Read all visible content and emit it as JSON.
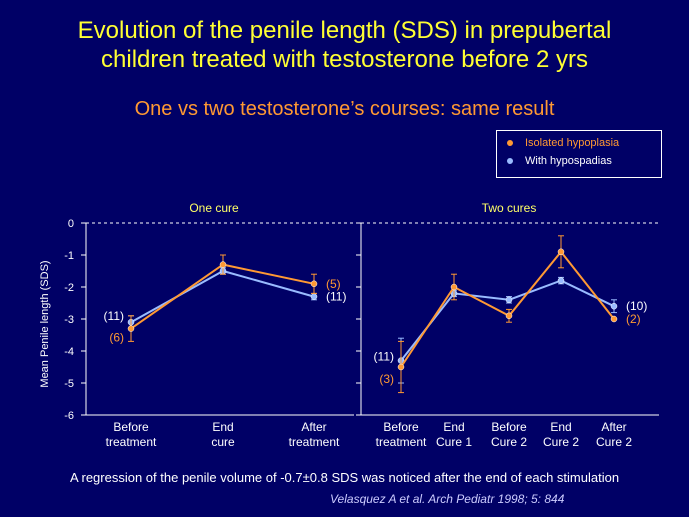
{
  "slide": {
    "title_line1": "Evolution of the penile length (SDS) in prepubertal",
    "title_line2": "children treated with testosterone before 2 yrs",
    "subtitle": "One vs two testosterone’s courses: same result",
    "footnote": "A regression of the penile volume of -0.7±0.8 SDS was noticed after the end of each stimulation",
    "citation": "Velasquez A et al. Arch Pediatr 1998; 5: 844"
  },
  "legend": [
    {
      "label": "Isolated hypoplasia",
      "color": "#ff9933"
    },
    {
      "label": "With hypospadias",
      "color": "#99bbff"
    }
  ],
  "chart_data": [
    {
      "type": "line",
      "title": "One cure",
      "xlabel": "",
      "ylabel": "Mean Penile length (SDS)",
      "ylim": [
        -6,
        0
      ],
      "yticks": [
        "0",
        "-1",
        "-2",
        "-3",
        "-4",
        "-5",
        "-6"
      ],
      "categories": [
        "Before treatment",
        "End cure",
        "After treatment"
      ],
      "series": [
        {
          "name": "Isolated hypoplasia",
          "color": "#ff9933",
          "values": [
            -3.3,
            -1.3,
            -1.9
          ],
          "err": [
            0.4,
            0.3,
            0.3
          ],
          "n": [
            "(6)",
            null,
            "(5)"
          ]
        },
        {
          "name": "With hypospadias",
          "color": "#99bbff",
          "values": [
            -3.1,
            -1.5,
            -2.3
          ],
          "err": [
            0.2,
            0.1,
            0.1
          ],
          "n": [
            "(11)",
            null,
            "(11)"
          ]
        }
      ],
      "baseline": 0,
      "grid": false
    },
    {
      "type": "line",
      "title": "Two cures",
      "xlabel": "",
      "ylabel": "",
      "ylim": [
        -6,
        0
      ],
      "categories": [
        "Before treatment",
        "End Cure 1",
        "Before Cure 2",
        "End Cure 2",
        "After Cure 2"
      ],
      "series": [
        {
          "name": "Isolated hypoplasia",
          "color": "#ff9933",
          "values": [
            -4.5,
            -2.0,
            -2.9,
            -0.9,
            -3.0
          ],
          "err": [
            0.8,
            0.4,
            0.2,
            0.5,
            0.0
          ],
          "n": [
            "(3)",
            null,
            null,
            null,
            "(2)"
          ]
        },
        {
          "name": "With hypospadias",
          "color": "#99bbff",
          "values": [
            -4.3,
            -2.2,
            -2.4,
            -1.8,
            -2.6
          ],
          "err": [
            0.7,
            0.1,
            0.1,
            0.1,
            0.2
          ],
          "n": [
            "(11)",
            null,
            null,
            null,
            "(10)"
          ]
        }
      ],
      "baseline": 0,
      "grid": false
    }
  ]
}
